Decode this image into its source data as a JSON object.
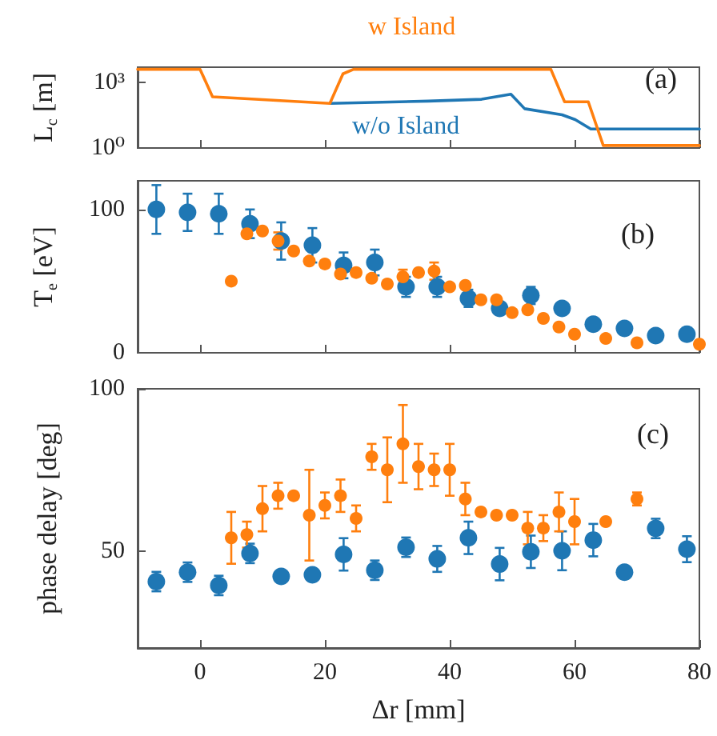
{
  "chart_data": [
    {
      "type": "line",
      "ylabel": "L$_{c}$ [m]",
      "xlim": [
        -10,
        80
      ],
      "xticks": [
        0,
        20,
        40,
        60,
        80
      ],
      "ylim": [
        1,
        5000
      ],
      "yticks": [
        {
          "value": 1,
          "label": "10⁰"
        },
        {
          "value": 1000,
          "label": "10³"
        }
      ],
      "log": "y",
      "tick_labels": "y",
      "marker": "none",
      "line_style": "solid",
      "annotations": [
        "(a)"
      ],
      "series": [
        {
          "name": "w/o Island",
          "color": "#1f77b4",
          "x": [
            20.8,
            36.6,
            45.1,
            49.8,
            52,
            58,
            60.1,
            62.6,
            80
          ],
          "values": [
            110,
            140,
            170,
            290,
            63,
            33,
            20,
            7.4,
            7.4
          ]
        },
        {
          "name": "w Island",
          "color": "#ff7f0e",
          "x": [
            -10,
            0,
            2,
            20.8,
            22.9,
            24.6,
            56.2,
            58.4,
            62.2,
            64.6,
            80
          ],
          "values": [
            4000,
            4000,
            220,
            110,
            2500,
            4000,
            4000,
            130,
            130,
            1.3,
            1.3
          ]
        }
      ]
    },
    {
      "type": "scatter",
      "ylabel": "T$_{e}$ [eV]",
      "xlim": [
        -10,
        80
      ],
      "xticks": [
        0,
        20,
        40,
        60,
        80
      ],
      "ylim": [
        0,
        120
      ],
      "yticks": [
        0,
        100
      ],
      "tick_labels": "y",
      "marker": "circle",
      "annotations": [
        "(b)"
      ],
      "series": [
        {
          "color": "#1f77b4",
          "x": [
            -7,
            -2,
            3,
            8,
            13,
            18,
            23,
            28,
            33,
            38,
            43,
            48,
            53,
            58,
            63,
            68,
            73,
            78
          ],
          "values": [
            100,
            98,
            97,
            90,
            78,
            75,
            61,
            63,
            46,
            46,
            38,
            31,
            40,
            31,
            20,
            17,
            12,
            13
          ],
          "errors": [
            17,
            13,
            14,
            10,
            13,
            12,
            9,
            9,
            7,
            7,
            6,
            null,
            6,
            4,
            null,
            null,
            null,
            null
          ]
        },
        {
          "color": "#ff7f0e",
          "x": [
            5,
            7.5,
            10,
            12.5,
            15,
            17.5,
            20,
            22.5,
            25,
            27.5,
            30,
            32.5,
            35,
            37.5,
            40,
            42.5,
            45,
            47.5,
            50,
            52.5,
            55,
            57.5,
            60,
            65,
            70,
            80
          ],
          "values": [
            50,
            83,
            85,
            78,
            71,
            64,
            62,
            55,
            56,
            52,
            48,
            53,
            56,
            57,
            46,
            47,
            37,
            37,
            28,
            30,
            24,
            18,
            13,
            10,
            7,
            6
          ],
          "errors": [
            null,
            null,
            null,
            6,
            null,
            null,
            null,
            null,
            null,
            null,
            null,
            5,
            null,
            6,
            null,
            null,
            null,
            null,
            null,
            null,
            null,
            null,
            null,
            null,
            null,
            null
          ]
        }
      ]
    },
    {
      "type": "scatter",
      "ylabel": "phase delay [deg]",
      "xlabel": "Δr [mm]",
      "xlim": [
        -10,
        80
      ],
      "xticks": [
        0,
        20,
        40,
        60,
        80
      ],
      "ylim": [
        20,
        100
      ],
      "yticks": [
        50,
        100
      ],
      "marker": "circle",
      "annotations": [
        "(c)"
      ],
      "series": [
        {
          "color": "#1f77b4",
          "x": [
            -7,
            -2,
            3,
            8,
            13,
            18,
            23,
            28,
            33,
            38,
            43,
            48,
            53,
            58,
            63,
            68,
            73,
            78
          ],
          "values": [
            40.5,
            43.4,
            39.3,
            49.2,
            42.1,
            42.6,
            48.9,
            44,
            51.1,
            47.5,
            54,
            45.9,
            49.7,
            50,
            53.3,
            43.4,
            56.9,
            50.5
          ],
          "errors": [
            3,
            3,
            3,
            3,
            null,
            null,
            5,
            3,
            3,
            4,
            5,
            5,
            5,
            6,
            5,
            null,
            3,
            4
          ]
        },
        {
          "color": "#ff7f0e",
          "x": [
            5,
            7.5,
            10,
            12.5,
            15,
            17.5,
            20,
            22.5,
            25,
            27.5,
            30,
            32.5,
            35,
            37.5,
            40,
            42.5,
            45,
            47.5,
            50,
            52.5,
            55,
            57.5,
            60,
            65,
            70
          ],
          "values": [
            54,
            55,
            63,
            67,
            67,
            61,
            64,
            67,
            60,
            79,
            75,
            83,
            76,
            75,
            75,
            66,
            62,
            61,
            61,
            57,
            57,
            62,
            59,
            59,
            66
          ],
          "errors": [
            8,
            4,
            7,
            4,
            null,
            14,
            4,
            5,
            4,
            4,
            10,
            12,
            7,
            5,
            8,
            5,
            null,
            null,
            null,
            5,
            4,
            6,
            7,
            null,
            2
          ]
        }
      ]
    }
  ]
}
